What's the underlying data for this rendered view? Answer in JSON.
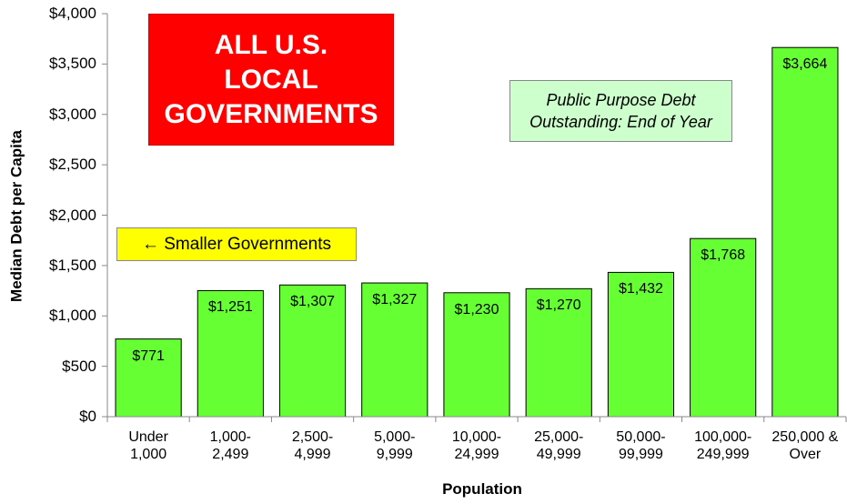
{
  "chart_data": {
    "type": "bar",
    "x_label": "Population",
    "y_label": "Median Debt per Capita",
    "categories": [
      "Under\n1,000",
      "1,000-\n2,499",
      "2,500-\n4,999",
      "5,000-\n9,999",
      "10,000-\n24,999",
      "25,000-\n49,999",
      "50,000-\n99,999",
      "100,000-\n249,999",
      "250,000 &\nOver"
    ],
    "values": [
      771,
      1251,
      1307,
      1327,
      1230,
      1270,
      1432,
      1768,
      3664
    ],
    "value_labels": [
      "$771",
      "$1,251",
      "$1,307",
      "$1,327",
      "$1,230",
      "$1,270",
      "$1,432",
      "$1,768",
      "$3,664"
    ],
    "color": "#66ff33",
    "ylim": [
      0,
      4000
    ],
    "yticks": [
      {
        "value": 0,
        "label": "$0"
      },
      {
        "value": 500,
        "label": "$500"
      },
      {
        "value": 1000,
        "label": "$1,000"
      },
      {
        "value": 1500,
        "label": "$1,500"
      },
      {
        "value": 2000,
        "label": "$2,000"
      },
      {
        "value": 2500,
        "label": "$2,500"
      },
      {
        "value": 3000,
        "label": "$3,000"
      },
      {
        "value": 3500,
        "label": "$3,500"
      },
      {
        "value": 4000,
        "label": "$4,000"
      }
    ],
    "grid": false,
    "annotations": [
      "ALL U.S.\nLOCAL\nGOVERNMENTS",
      "Public Purpose Debt\nOutstanding: End of Year",
      "← Smaller Governments"
    ]
  }
}
